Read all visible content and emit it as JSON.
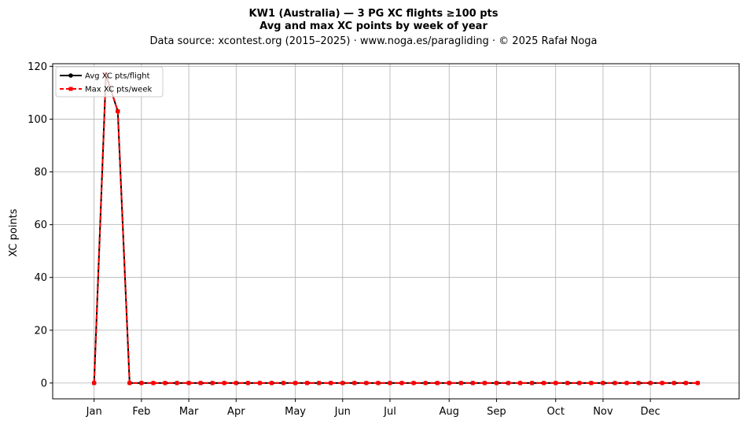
{
  "chart_data": {
    "type": "line",
    "title": "KW1 (Australia)  —  3 PG XC flights ≥100 pts",
    "subtitle": "Avg and max XC points by week of year",
    "source": "Data source: xcontest.org (2015–2025)  ·  www.noga.es/paragliding  ·  © 2025 Rafał Noga",
    "xlabel": "",
    "ylabel": "XC points",
    "xlim": [
      -2.5,
      55.5
    ],
    "ylim": [
      -6,
      121
    ],
    "yticks": [
      0,
      20,
      40,
      60,
      80,
      100,
      120
    ],
    "xticks": [
      {
        "label": "Jan",
        "week": 1
      },
      {
        "label": "Feb",
        "week": 5
      },
      {
        "label": "Mar",
        "week": 9
      },
      {
        "label": "Apr",
        "week": 13
      },
      {
        "label": "May",
        "week": 18
      },
      {
        "label": "Jun",
        "week": 22
      },
      {
        "label": "Jul",
        "week": 26
      },
      {
        "label": "Aug",
        "week": 31
      },
      {
        "label": "Sep",
        "week": 35
      },
      {
        "label": "Oct",
        "week": 40
      },
      {
        "label": "Nov",
        "week": 44
      },
      {
        "label": "Dec",
        "week": 48
      }
    ],
    "grid": true,
    "legend_position": "top-left",
    "x": [
      1,
      2,
      3,
      4,
      5,
      6,
      7,
      8,
      9,
      10,
      11,
      12,
      13,
      14,
      15,
      16,
      17,
      18,
      19,
      20,
      21,
      22,
      23,
      24,
      25,
      26,
      27,
      28,
      29,
      30,
      31,
      32,
      33,
      34,
      35,
      36,
      37,
      38,
      39,
      40,
      41,
      42,
      43,
      44,
      45,
      46,
      47,
      48,
      49,
      50,
      51,
      52
    ],
    "series": [
      {
        "name": "Avg XC pts/flight",
        "color": "#000000",
        "style": "solid-circle",
        "values": [
          0,
          117,
          103,
          0,
          0,
          0,
          0,
          0,
          0,
          0,
          0,
          0,
          0,
          0,
          0,
          0,
          0,
          0,
          0,
          0,
          0,
          0,
          0,
          0,
          0,
          0,
          0,
          0,
          0,
          0,
          0,
          0,
          0,
          0,
          0,
          0,
          0,
          0,
          0,
          0,
          0,
          0,
          0,
          0,
          0,
          0,
          0,
          0,
          0,
          0,
          0,
          0
        ]
      },
      {
        "name": "Max XC pts/week",
        "color": "#ff0000",
        "style": "dashed-square",
        "values": [
          0,
          117,
          103,
          0,
          0,
          0,
          0,
          0,
          0,
          0,
          0,
          0,
          0,
          0,
          0,
          0,
          0,
          0,
          0,
          0,
          0,
          0,
          0,
          0,
          0,
          0,
          0,
          0,
          0,
          0,
          0,
          0,
          0,
          0,
          0,
          0,
          0,
          0,
          0,
          0,
          0,
          0,
          0,
          0,
          0,
          0,
          0,
          0,
          0,
          0,
          0,
          0
        ]
      }
    ]
  }
}
